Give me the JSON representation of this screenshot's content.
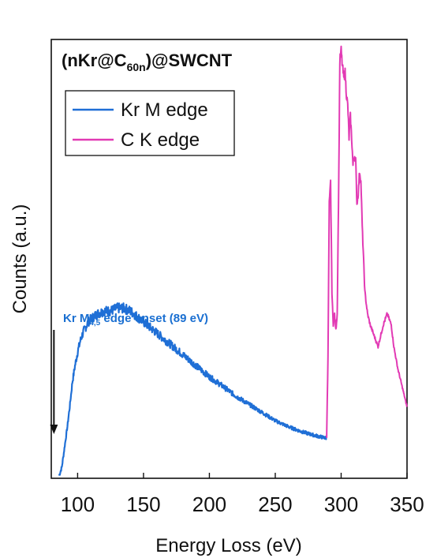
{
  "chart_data": {
    "type": "line",
    "title_main": "(nKr@C",
    "title_sub": "60n",
    "title_end": ")@SWCNT",
    "xlabel": "Energy Loss (eV)",
    "ylabel": "Counts (a.u.)",
    "xlim": [
      80,
      350
    ],
    "xticks": [
      "100",
      "150",
      "200",
      "250",
      "300",
      "350"
    ],
    "xtick_values": [
      100,
      150,
      200,
      250,
      300,
      350
    ],
    "legend_position": "top-left",
    "grid": false,
    "colors": {
      "kr": "#1f6fd6",
      "c": "#e23ab4",
      "annotation": "#1a6fd1",
      "arrow": "#111111"
    },
    "annotation": {
      "prefix": "Kr M",
      "sub": "4,5",
      "suffix": " edge onset (89 eV)",
      "arrow_x": 82
    },
    "series": [
      {
        "name": "Kr M edge",
        "x": [
          86,
          88,
          90,
          92,
          94,
          96,
          98,
          100,
          102,
          104,
          106,
          108,
          110,
          115,
          120,
          125,
          130,
          135,
          140,
          145,
          150,
          160,
          170,
          180,
          190,
          200,
          210,
          220,
          230,
          240,
          250,
          260,
          270,
          280,
          289
        ],
        "y": [
          0.5,
          2,
          5.5,
          9,
          13,
          17.5,
          20.5,
          23,
          25,
          26.5,
          27.5,
          28.5,
          29,
          30,
          30.5,
          30.5,
          31,
          31,
          30.5,
          29.5,
          28.5,
          26.5,
          24.5,
          22.5,
          20.5,
          18.5,
          16.8,
          15,
          13.5,
          12,
          10.5,
          9.4,
          8.5,
          7.8,
          7.3
        ]
      },
      {
        "name": "C K edge",
        "x": [
          289,
          290,
          291,
          292,
          293,
          294,
          295,
          296,
          297,
          298,
          299,
          300,
          301,
          302,
          303,
          304,
          305,
          306,
          307,
          308,
          309,
          310,
          311,
          312,
          313,
          314,
          315,
          316,
          317,
          318,
          320,
          322,
          325,
          328,
          330,
          332,
          335,
          338,
          340,
          343,
          346,
          349,
          350
        ],
        "y": [
          7.3,
          22,
          50,
          54,
          34,
          28,
          30,
          27,
          30,
          50,
          76,
          78,
          75,
          73,
          74,
          70,
          68,
          62,
          66,
          62,
          57,
          59,
          58,
          50,
          52,
          56,
          54,
          46,
          40,
          34,
          30,
          28,
          26,
          24,
          26,
          28,
          30,
          28,
          24,
          20,
          17,
          14,
          13
        ]
      }
    ]
  }
}
